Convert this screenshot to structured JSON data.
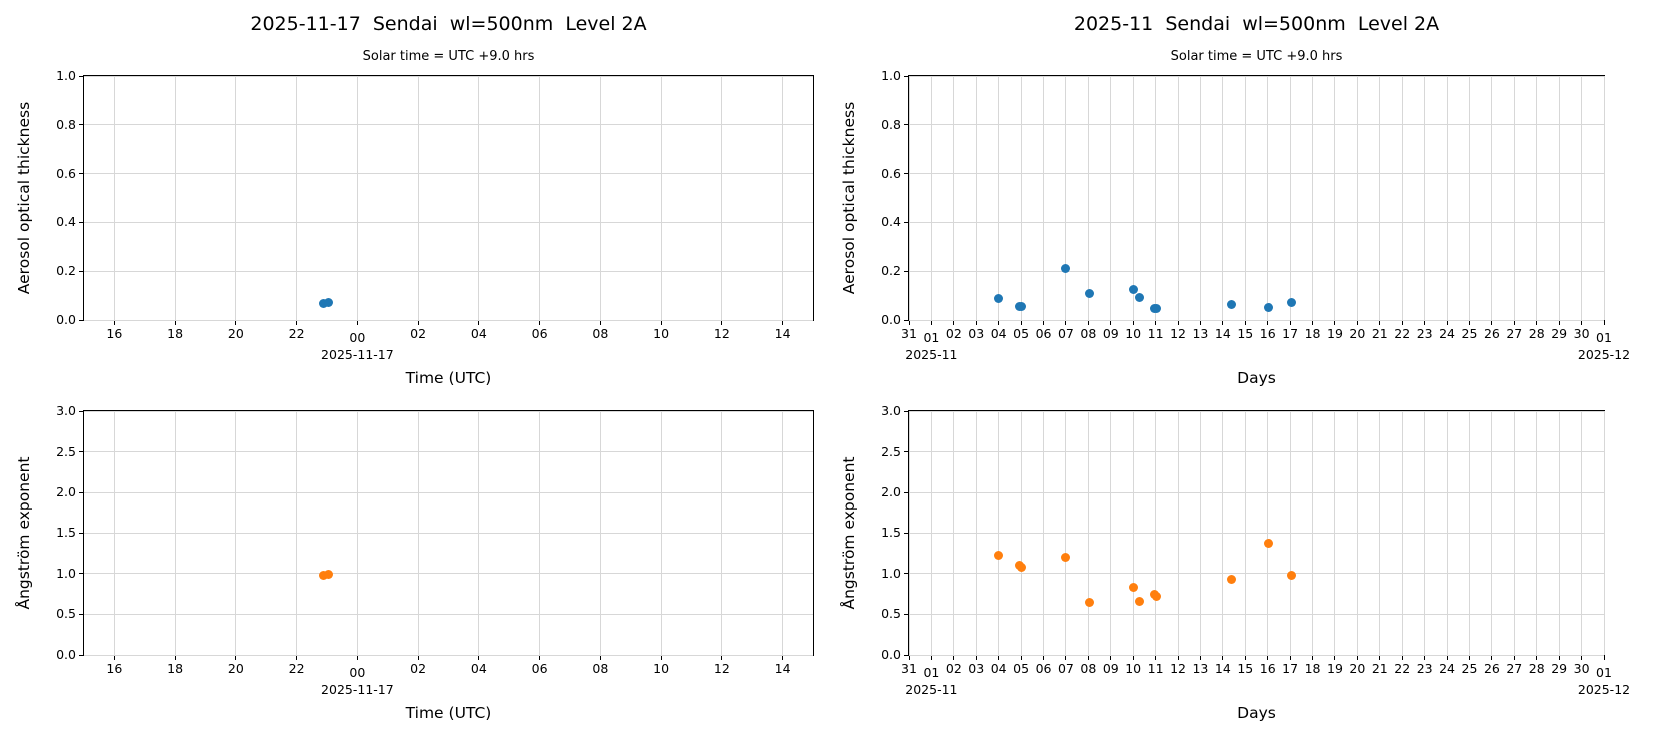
{
  "palette": {
    "aot_marker": "#1f77b4",
    "angstrom_marker": "#ff7f0e",
    "grid": "#d7d7d7",
    "spine": "#000000",
    "background": "#ffffff"
  },
  "chart_data": [
    {
      "id": "daily-aot",
      "type": "scatter",
      "title": "2025-11-17  Sendai  wl=500nm  Level 2A",
      "subtitle": "Solar time = UTC +9.0 hrs",
      "ylabel": "Aerosol optical thickness",
      "xlabel": "Time (UTC)",
      "marker_color": "#1f77b4",
      "grid": true,
      "legend": "none",
      "x_domain": [
        15,
        39
      ],
      "y_domain": [
        0.0,
        1.0
      ],
      "x_ticks": [
        {
          "v": 16,
          "label": "16"
        },
        {
          "v": 18,
          "label": "18"
        },
        {
          "v": 20,
          "label": "20"
        },
        {
          "v": 22,
          "label": "22"
        },
        {
          "v": 24,
          "label": "00",
          "drop": true,
          "sub": "2025-11-17"
        },
        {
          "v": 26,
          "label": "02"
        },
        {
          "v": 28,
          "label": "04"
        },
        {
          "v": 30,
          "label": "06"
        },
        {
          "v": 32,
          "label": "08"
        },
        {
          "v": 34,
          "label": "10"
        },
        {
          "v": 36,
          "label": "12"
        },
        {
          "v": 38,
          "label": "14"
        }
      ],
      "y_ticks": [
        {
          "v": 0.0,
          "label": "0.0"
        },
        {
          "v": 0.2,
          "label": "0.2"
        },
        {
          "v": 0.4,
          "label": "0.4"
        },
        {
          "v": 0.6,
          "label": "0.6"
        },
        {
          "v": 0.8,
          "label": "0.8"
        },
        {
          "v": 1.0,
          "label": "1.0"
        }
      ],
      "points": [
        [
          22.9,
          0.067
        ],
        [
          23.05,
          0.07
        ]
      ]
    },
    {
      "id": "monthly-aot",
      "type": "scatter",
      "title": "2025-11  Sendai  wl=500nm  Level 2A",
      "subtitle": "Solar time = UTC +9.0 hrs",
      "ylabel": "Aerosol optical thickness",
      "xlabel": "Days",
      "marker_color": "#1f77b4",
      "grid": true,
      "legend": "none",
      "x_domain": [
        0,
        31
      ],
      "y_domain": [
        0.0,
        1.0
      ],
      "x_ticks": [
        {
          "v": 0,
          "label": "31"
        },
        {
          "v": 1,
          "label": "01",
          "drop": true,
          "sub": "2025-11"
        },
        {
          "v": 2,
          "label": "02"
        },
        {
          "v": 3,
          "label": "03"
        },
        {
          "v": 4,
          "label": "04"
        },
        {
          "v": 5,
          "label": "05"
        },
        {
          "v": 6,
          "label": "06"
        },
        {
          "v": 7,
          "label": "07"
        },
        {
          "v": 8,
          "label": "08"
        },
        {
          "v": 9,
          "label": "09"
        },
        {
          "v": 10,
          "label": "10"
        },
        {
          "v": 11,
          "label": "11"
        },
        {
          "v": 12,
          "label": "12"
        },
        {
          "v": 13,
          "label": "13"
        },
        {
          "v": 14,
          "label": "14"
        },
        {
          "v": 15,
          "label": "15"
        },
        {
          "v": 16,
          "label": "16"
        },
        {
          "v": 17,
          "label": "17"
        },
        {
          "v": 18,
          "label": "18"
        },
        {
          "v": 19,
          "label": "19"
        },
        {
          "v": 20,
          "label": "20"
        },
        {
          "v": 21,
          "label": "21"
        },
        {
          "v": 22,
          "label": "22"
        },
        {
          "v": 23,
          "label": "23"
        },
        {
          "v": 24,
          "label": "24"
        },
        {
          "v": 25,
          "label": "25"
        },
        {
          "v": 26,
          "label": "26"
        },
        {
          "v": 27,
          "label": "27"
        },
        {
          "v": 28,
          "label": "28"
        },
        {
          "v": 29,
          "label": "29"
        },
        {
          "v": 30,
          "label": "30"
        },
        {
          "v": 31,
          "label": "01",
          "drop": true,
          "sub": "2025-12"
        }
      ],
      "y_ticks": [
        {
          "v": 0.0,
          "label": "0.0"
        },
        {
          "v": 0.2,
          "label": "0.2"
        },
        {
          "v": 0.4,
          "label": "0.4"
        },
        {
          "v": 0.6,
          "label": "0.6"
        },
        {
          "v": 0.8,
          "label": "0.8"
        },
        {
          "v": 1.0,
          "label": "1.0"
        }
      ],
      "points": [
        [
          4.0,
          0.09
        ],
        [
          4.95,
          0.054
        ],
        [
          5.03,
          0.056
        ],
        [
          7.0,
          0.213
        ],
        [
          8.03,
          0.11
        ],
        [
          10.0,
          0.127
        ],
        [
          10.3,
          0.094
        ],
        [
          10.97,
          0.046
        ],
        [
          11.06,
          0.048
        ],
        [
          14.4,
          0.063
        ],
        [
          16.05,
          0.052
        ],
        [
          17.05,
          0.07
        ]
      ]
    },
    {
      "id": "daily-angstrom",
      "type": "scatter",
      "title": "",
      "subtitle": "",
      "ylabel": "Ångström exponent",
      "xlabel": "Time (UTC)",
      "marker_color": "#ff7f0e",
      "grid": true,
      "legend": "none",
      "x_domain": [
        15,
        39
      ],
      "y_domain": [
        0.0,
        3.0
      ],
      "x_ticks": [
        {
          "v": 16,
          "label": "16"
        },
        {
          "v": 18,
          "label": "18"
        },
        {
          "v": 20,
          "label": "20"
        },
        {
          "v": 22,
          "label": "22"
        },
        {
          "v": 24,
          "label": "00",
          "drop": true,
          "sub": "2025-11-17"
        },
        {
          "v": 26,
          "label": "02"
        },
        {
          "v": 28,
          "label": "04"
        },
        {
          "v": 30,
          "label": "06"
        },
        {
          "v": 32,
          "label": "08"
        },
        {
          "v": 34,
          "label": "10"
        },
        {
          "v": 36,
          "label": "12"
        },
        {
          "v": 38,
          "label": "14"
        }
      ],
      "y_ticks": [
        {
          "v": 0.0,
          "label": "0.0"
        },
        {
          "v": 0.5,
          "label": "0.5"
        },
        {
          "v": 1.0,
          "label": "1.0"
        },
        {
          "v": 1.5,
          "label": "1.5"
        },
        {
          "v": 2.0,
          "label": "2.0"
        },
        {
          "v": 2.5,
          "label": "2.5"
        },
        {
          "v": 3.0,
          "label": "3.0"
        }
      ],
      "points": [
        [
          22.9,
          0.975
        ],
        [
          23.05,
          0.985
        ]
      ]
    },
    {
      "id": "monthly-angstrom",
      "type": "scatter",
      "title": "",
      "subtitle": "",
      "ylabel": "Ångström exponent",
      "xlabel": "Days",
      "marker_color": "#ff7f0e",
      "grid": true,
      "legend": "none",
      "x_domain": [
        0,
        31
      ],
      "y_domain": [
        0.0,
        3.0
      ],
      "x_ticks": [
        {
          "v": 0,
          "label": "31"
        },
        {
          "v": 1,
          "label": "01",
          "drop": true,
          "sub": "2025-11"
        },
        {
          "v": 2,
          "label": "02"
        },
        {
          "v": 3,
          "label": "03"
        },
        {
          "v": 4,
          "label": "04"
        },
        {
          "v": 5,
          "label": "05"
        },
        {
          "v": 6,
          "label": "06"
        },
        {
          "v": 7,
          "label": "07"
        },
        {
          "v": 8,
          "label": "08"
        },
        {
          "v": 9,
          "label": "09"
        },
        {
          "v": 10,
          "label": "10"
        },
        {
          "v": 11,
          "label": "11"
        },
        {
          "v": 12,
          "label": "12"
        },
        {
          "v": 13,
          "label": "13"
        },
        {
          "v": 14,
          "label": "14"
        },
        {
          "v": 15,
          "label": "15"
        },
        {
          "v": 16,
          "label": "16"
        },
        {
          "v": 17,
          "label": "17"
        },
        {
          "v": 18,
          "label": "18"
        },
        {
          "v": 19,
          "label": "19"
        },
        {
          "v": 20,
          "label": "20"
        },
        {
          "v": 21,
          "label": "21"
        },
        {
          "v": 22,
          "label": "22"
        },
        {
          "v": 23,
          "label": "23"
        },
        {
          "v": 24,
          "label": "24"
        },
        {
          "v": 25,
          "label": "25"
        },
        {
          "v": 26,
          "label": "26"
        },
        {
          "v": 27,
          "label": "27"
        },
        {
          "v": 28,
          "label": "28"
        },
        {
          "v": 29,
          "label": "29"
        },
        {
          "v": 30,
          "label": "30"
        },
        {
          "v": 31,
          "label": "01",
          "drop": true,
          "sub": "2025-12"
        }
      ],
      "y_ticks": [
        {
          "v": 0.0,
          "label": "0.0"
        },
        {
          "v": 0.5,
          "label": "0.5"
        },
        {
          "v": 1.0,
          "label": "1.0"
        },
        {
          "v": 1.5,
          "label": "1.5"
        },
        {
          "v": 2.0,
          "label": "2.0"
        },
        {
          "v": 2.5,
          "label": "2.5"
        },
        {
          "v": 3.0,
          "label": "3.0"
        }
      ],
      "points": [
        [
          4.0,
          1.225
        ],
        [
          4.95,
          1.105
        ],
        [
          5.03,
          1.075
        ],
        [
          7.0,
          1.2
        ],
        [
          8.03,
          0.645
        ],
        [
          10.0,
          0.825
        ],
        [
          10.3,
          0.655
        ],
        [
          10.97,
          0.745
        ],
        [
          11.06,
          0.715
        ],
        [
          14.4,
          0.925
        ],
        [
          16.05,
          1.37
        ],
        [
          17.05,
          0.98
        ]
      ]
    }
  ]
}
